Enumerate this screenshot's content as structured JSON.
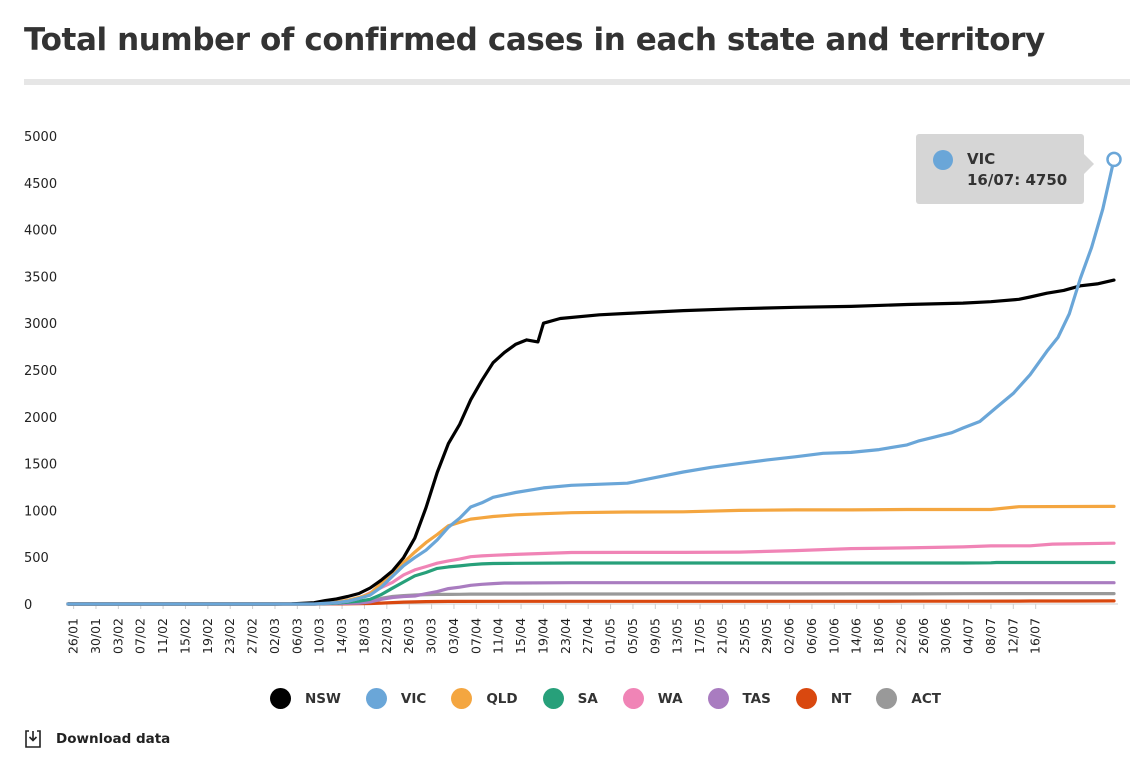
{
  "chart_data": {
    "type": "line",
    "title": "Total number of confirmed cases in each state and territory",
    "xlabel": "",
    "ylabel": "",
    "ylim": [
      0,
      5000
    ],
    "yticks": [
      0,
      500,
      1000,
      1500,
      2000,
      2500,
      3000,
      3500,
      4000,
      4500,
      5000
    ],
    "xticks": [
      "26/01",
      "30/01",
      "03/02",
      "07/02",
      "11/02",
      "15/02",
      "19/02",
      "23/02",
      "27/02",
      "02/03",
      "06/03",
      "10/03",
      "14/03",
      "18/03",
      "22/03",
      "26/03",
      "30/03",
      "03/04",
      "07/04",
      "11/04",
      "15/04",
      "19/04",
      "23/04",
      "27/04",
      "01/05",
      "05/05",
      "09/05",
      "13/05",
      "17/05",
      "21/05",
      "25/05",
      "29/05",
      "02/06",
      "06/06",
      "10/06",
      "14/06",
      "18/06",
      "22/06",
      "26/06",
      "30/06",
      "04/07",
      "08/07",
      "12/07",
      "16/07"
    ],
    "x_start": "25/01",
    "x_end": "16/07",
    "series": [
      {
        "name": "NSW",
        "color": "#000000",
        "points": [
          [
            0,
            0
          ],
          [
            37,
            0
          ],
          [
            40,
            2
          ],
          [
            44,
            14
          ],
          [
            46,
            36
          ],
          [
            48,
            55
          ],
          [
            50,
            80
          ],
          [
            52,
            112
          ],
          [
            54,
            171
          ],
          [
            56,
            254
          ],
          [
            58,
            353
          ],
          [
            60,
            496
          ],
          [
            62,
            704
          ],
          [
            64,
            1029
          ],
          [
            66,
            1405
          ],
          [
            68,
            1714
          ],
          [
            70,
            1918
          ],
          [
            72,
            2182
          ],
          [
            74,
            2390
          ],
          [
            76,
            2578
          ],
          [
            78,
            2686
          ],
          [
            80,
            2773
          ],
          [
            82,
            2822
          ],
          [
            84,
            2800
          ],
          [
            85,
            3000
          ],
          [
            88,
            3050
          ],
          [
            95,
            3090
          ],
          [
            100,
            3105
          ],
          [
            110,
            3135
          ],
          [
            120,
            3155
          ],
          [
            130,
            3170
          ],
          [
            140,
            3180
          ],
          [
            150,
            3200
          ],
          [
            160,
            3215
          ],
          [
            165,
            3230
          ],
          [
            170,
            3255
          ],
          [
            172,
            3280
          ],
          [
            175,
            3320
          ],
          [
            178,
            3350
          ],
          [
            181,
            3400
          ],
          [
            184,
            3420
          ],
          [
            187,
            3460
          ]
        ]
      },
      {
        "name": "VIC",
        "color": "#6aa6d8",
        "points": [
          [
            0,
            0
          ],
          [
            44,
            0
          ],
          [
            48,
            15
          ],
          [
            50,
            30
          ],
          [
            52,
            60
          ],
          [
            54,
            95
          ],
          [
            56,
            180
          ],
          [
            58,
            296
          ],
          [
            60,
            409
          ],
          [
            62,
            496
          ],
          [
            64,
            575
          ],
          [
            66,
            685
          ],
          [
            68,
            821
          ],
          [
            70,
            917
          ],
          [
            72,
            1036
          ],
          [
            74,
            1081
          ],
          [
            76,
            1140
          ],
          [
            80,
            1191
          ],
          [
            85,
            1240
          ],
          [
            90,
            1268
          ],
          [
            100,
            1291
          ],
          [
            105,
            1350
          ],
          [
            110,
            1410
          ],
          [
            115,
            1460
          ],
          [
            120,
            1500
          ],
          [
            125,
            1540
          ],
          [
            130,
            1573
          ],
          [
            135,
            1610
          ],
          [
            140,
            1620
          ],
          [
            145,
            1650
          ],
          [
            150,
            1700
          ],
          [
            152,
            1740
          ],
          [
            155,
            1785
          ],
          [
            158,
            1830
          ],
          [
            160,
            1880
          ],
          [
            163,
            1950
          ],
          [
            166,
            2100
          ],
          [
            169,
            2250
          ],
          [
            172,
            2450
          ],
          [
            175,
            2700
          ],
          [
            177,
            2850
          ],
          [
            179,
            3100
          ],
          [
            181,
            3480
          ],
          [
            183,
            3810
          ],
          [
            185,
            4220
          ],
          [
            187,
            4750
          ]
        ]
      },
      {
        "name": "QLD",
        "color": "#f4a640",
        "points": [
          [
            0,
            0
          ],
          [
            44,
            0
          ],
          [
            46,
            10
          ],
          [
            48,
            20
          ],
          [
            50,
            40
          ],
          [
            52,
            68
          ],
          [
            54,
            110
          ],
          [
            56,
            221
          ],
          [
            58,
            319
          ],
          [
            60,
            443
          ],
          [
            62,
            555
          ],
          [
            64,
            656
          ],
          [
            66,
            743
          ],
          [
            68,
            835
          ],
          [
            70,
            873
          ],
          [
            72,
            907
          ],
          [
            74,
            921
          ],
          [
            76,
            935
          ],
          [
            80,
            953
          ],
          [
            85,
            965
          ],
          [
            90,
            975
          ],
          [
            100,
            983
          ],
          [
            110,
            985
          ],
          [
            120,
            1000
          ],
          [
            130,
            1005
          ],
          [
            140,
            1005
          ],
          [
            150,
            1010
          ],
          [
            160,
            1010
          ],
          [
            165,
            1010
          ],
          [
            170,
            1040
          ],
          [
            187,
            1043
          ]
        ]
      },
      {
        "name": "SA",
        "color": "#27a07a",
        "points": [
          [
            0,
            0
          ],
          [
            44,
            0
          ],
          [
            48,
            10
          ],
          [
            52,
            30
          ],
          [
            54,
            50
          ],
          [
            56,
            100
          ],
          [
            58,
            169
          ],
          [
            60,
            235
          ],
          [
            62,
            300
          ],
          [
            64,
            337
          ],
          [
            66,
            380
          ],
          [
            68,
            396
          ],
          [
            70,
            407
          ],
          [
            72,
            420
          ],
          [
            74,
            428
          ],
          [
            76,
            433
          ],
          [
            80,
            435
          ],
          [
            90,
            438
          ],
          [
            100,
            438
          ],
          [
            110,
            438
          ],
          [
            120,
            438
          ],
          [
            130,
            438
          ],
          [
            140,
            438
          ],
          [
            150,
            438
          ],
          [
            160,
            438
          ],
          [
            165,
            440
          ],
          [
            166,
            443
          ],
          [
            187,
            443
          ]
        ]
      },
      {
        "name": "WA",
        "color": "#f084b6",
        "points": [
          [
            0,
            0
          ],
          [
            44,
            0
          ],
          [
            48,
            15
          ],
          [
            50,
            30
          ],
          [
            52,
            60
          ],
          [
            54,
            120
          ],
          [
            56,
            175
          ],
          [
            58,
            231
          ],
          [
            60,
            311
          ],
          [
            62,
            364
          ],
          [
            64,
            400
          ],
          [
            66,
            436
          ],
          [
            68,
            460
          ],
          [
            70,
            480
          ],
          [
            72,
            505
          ],
          [
            74,
            514
          ],
          [
            76,
            520
          ],
          [
            80,
            530
          ],
          [
            90,
            550
          ],
          [
            100,
            551
          ],
          [
            110,
            551
          ],
          [
            120,
            555
          ],
          [
            130,
            570
          ],
          [
            140,
            592
          ],
          [
            150,
            599
          ],
          [
            160,
            610
          ],
          [
            165,
            621
          ],
          [
            172,
            622
          ],
          [
            176,
            640
          ],
          [
            187,
            650
          ]
        ]
      },
      {
        "name": "TAS",
        "color": "#a97cc0",
        "points": [
          [
            0,
            0
          ],
          [
            44,
            0
          ],
          [
            48,
            5
          ],
          [
            52,
            10
          ],
          [
            54,
            22
          ],
          [
            56,
            50
          ],
          [
            58,
            69
          ],
          [
            60,
            80
          ],
          [
            62,
            86
          ],
          [
            64,
            110
          ],
          [
            66,
            133
          ],
          [
            68,
            165
          ],
          [
            70,
            180
          ],
          [
            72,
            200
          ],
          [
            74,
            210
          ],
          [
            76,
            218
          ],
          [
            78,
            224
          ],
          [
            80,
            224
          ],
          [
            90,
            228
          ],
          [
            100,
            228
          ],
          [
            110,
            228
          ],
          [
            120,
            228
          ],
          [
            130,
            228
          ],
          [
            140,
            228
          ],
          [
            150,
            228
          ],
          [
            160,
            228
          ],
          [
            170,
            228
          ],
          [
            187,
            228
          ]
        ]
      },
      {
        "name": "NT",
        "color": "#d9480f",
        "points": [
          [
            0,
            0
          ],
          [
            44,
            0
          ],
          [
            50,
            2
          ],
          [
            54,
            5
          ],
          [
            56,
            10
          ],
          [
            58,
            15
          ],
          [
            60,
            20
          ],
          [
            62,
            22
          ],
          [
            64,
            26
          ],
          [
            66,
            27
          ],
          [
            68,
            28
          ],
          [
            70,
            28
          ],
          [
            80,
            29
          ],
          [
            90,
            29
          ],
          [
            100,
            29
          ],
          [
            110,
            29
          ],
          [
            120,
            29
          ],
          [
            130,
            29
          ],
          [
            140,
            29
          ],
          [
            150,
            30
          ],
          [
            160,
            30
          ],
          [
            170,
            31
          ],
          [
            172,
            32
          ],
          [
            180,
            32
          ],
          [
            187,
            33
          ]
        ]
      },
      {
        "name": "ACT",
        "color": "#999999",
        "points": [
          [
            0,
            0
          ],
          [
            44,
            0
          ],
          [
            48,
            2
          ],
          [
            50,
            5
          ],
          [
            52,
            10
          ],
          [
            54,
            30
          ],
          [
            56,
            60
          ],
          [
            58,
            80
          ],
          [
            60,
            90
          ],
          [
            62,
            96
          ],
          [
            64,
            100
          ],
          [
            66,
            103
          ],
          [
            68,
            103
          ],
          [
            70,
            104
          ],
          [
            72,
            106
          ],
          [
            74,
            106
          ],
          [
            76,
            106
          ],
          [
            80,
            106
          ],
          [
            90,
            107
          ],
          [
            100,
            107
          ],
          [
            110,
            107
          ],
          [
            120,
            107
          ],
          [
            130,
            107
          ],
          [
            140,
            108
          ],
          [
            150,
            108
          ],
          [
            160,
            110
          ],
          [
            170,
            111
          ],
          [
            187,
            111
          ]
        ]
      }
    ],
    "tooltip": {
      "series": "VIC",
      "date": "16/07",
      "value": 4750,
      "label": "16/07: 4750"
    },
    "legend_position": "bottom"
  },
  "legend": [
    {
      "name": "NSW",
      "color": "#000000"
    },
    {
      "name": "VIC",
      "color": "#6aa6d8"
    },
    {
      "name": "QLD",
      "color": "#f4a640"
    },
    {
      "name": "SA",
      "color": "#27a07a"
    },
    {
      "name": "WA",
      "color": "#f084b6"
    },
    {
      "name": "TAS",
      "color": "#a97cc0"
    },
    {
      "name": "NT",
      "color": "#d9480f"
    },
    {
      "name": "ACT",
      "color": "#999999"
    }
  ],
  "download": {
    "label": "Download data",
    "icon": "download-icon"
  }
}
